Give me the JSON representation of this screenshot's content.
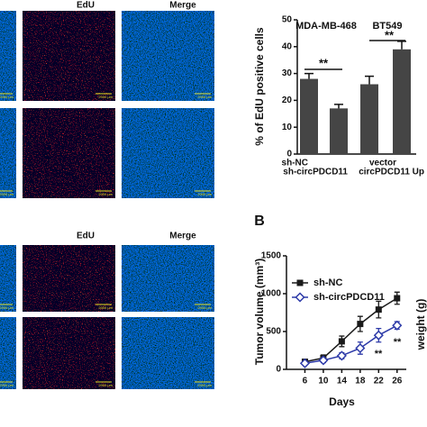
{
  "image_panels": {
    "top_headers": [
      "EdU",
      "Merge"
    ],
    "bottom_headers": [
      "EdU",
      "Merge"
    ],
    "scale_label": "2000 μm"
  },
  "right_axis_label": "weight (g)",
  "chart_data": [
    {
      "type": "bar",
      "ylabel": "% of EdU positive cells",
      "groups": [
        "MDA-MB-468",
        "BT549"
      ],
      "categories": [
        "sh-NC",
        "sh-circPDCD11",
        "vector",
        "circPDCD11 Up"
      ],
      "values": [
        28,
        17,
        26,
        39
      ],
      "errors": [
        2,
        1.5,
        3,
        3
      ],
      "color": "#454545",
      "ylim": [
        0,
        50
      ],
      "yticks": [
        0,
        10,
        20,
        30,
        40,
        50
      ],
      "annotations": [
        "**",
        "**"
      ]
    },
    {
      "type": "line",
      "panel_label": "B",
      "xlabel": "Days",
      "ylabel": "Tumor volume (mm³)",
      "x": [
        6,
        10,
        14,
        18,
        22,
        26
      ],
      "xlim": [
        2,
        28
      ],
      "xticks": [
        6,
        10,
        14,
        18,
        22,
        26
      ],
      "ylim": [
        0,
        1500
      ],
      "yticks": [
        0,
        500,
        1000,
        1500
      ],
      "legend": "upper left",
      "series": [
        {
          "name": "sh-NC",
          "color": "#1a1a1a",
          "marker": "square",
          "values": [
            100,
            150,
            370,
            600,
            790,
            940
          ],
          "errors": [
            30,
            40,
            70,
            100,
            110,
            80
          ]
        },
        {
          "name": "sh-circPDCD11",
          "color": "#2d3aa8",
          "marker": "diamond",
          "values": [
            80,
            120,
            180,
            280,
            450,
            580
          ],
          "errors": [
            20,
            30,
            40,
            80,
            90,
            50
          ]
        }
      ],
      "annotations": [
        "**",
        "**"
      ]
    }
  ]
}
